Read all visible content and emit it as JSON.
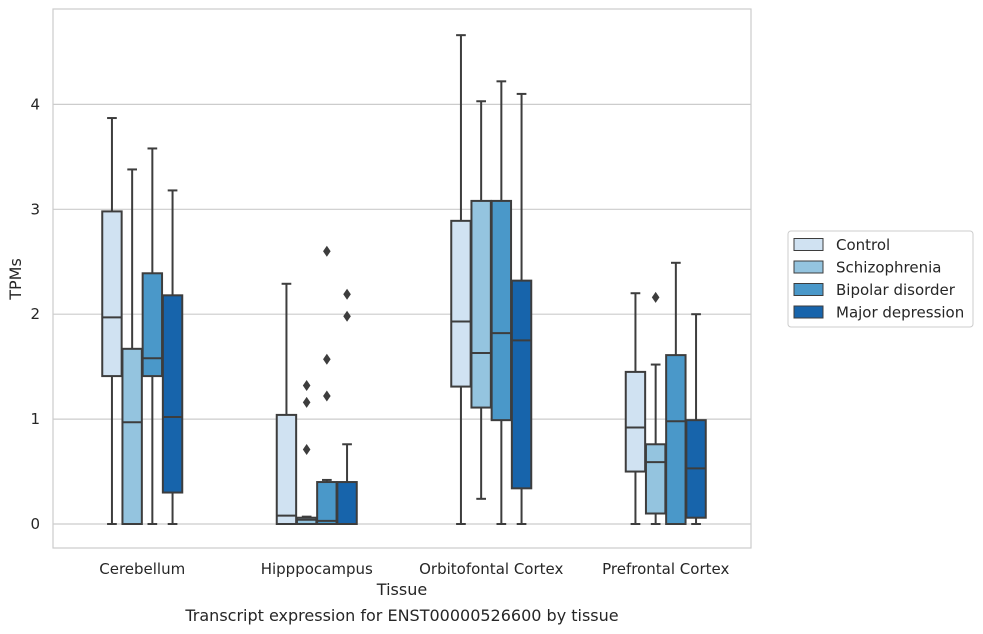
{
  "chart_data": {
    "type": "box",
    "title": "Transcript expression for ENST00000526600 by tissue",
    "xlabel": "Tissue",
    "ylabel": "TPMs",
    "ylim": [
      -0.22,
      4.9
    ],
    "yticks": [
      0,
      1,
      2,
      3,
      4
    ],
    "grid": "horizontal",
    "legend_position": "right",
    "categories": [
      "Cerebellum",
      "Hipppocampus",
      "Orbitofontal Cortex",
      "Prefrontal Cortex"
    ],
    "series": [
      {
        "name": "Control",
        "color": "#d0e2f2",
        "boxes": [
          {
            "whislo": 0,
            "q1": 1.41,
            "med": 1.97,
            "q3": 2.98,
            "whishi": 3.87,
            "fliers": []
          },
          {
            "whislo": 0,
            "q1": 0,
            "med": 0.08,
            "q3": 1.04,
            "whishi": 2.29,
            "fliers": []
          },
          {
            "whislo": 0,
            "q1": 1.31,
            "med": 1.93,
            "q3": 2.89,
            "whishi": 4.66,
            "fliers": []
          },
          {
            "whislo": 0,
            "q1": 0.5,
            "med": 0.92,
            "q3": 1.45,
            "whishi": 2.2,
            "fliers": []
          }
        ]
      },
      {
        "name": "Schizophrenia",
        "color": "#94c4df",
        "boxes": [
          {
            "whislo": 0,
            "q1": 0,
            "med": 0.97,
            "q3": 1.67,
            "whishi": 3.38,
            "fliers": []
          },
          {
            "whislo": 0,
            "q1": 0,
            "med": 0.04,
            "q3": 0.06,
            "whishi": 0.07,
            "fliers": [
              0.71,
              1.16,
              1.32
            ]
          },
          {
            "whislo": 0.24,
            "q1": 1.11,
            "med": 1.63,
            "q3": 3.08,
            "whishi": 4.03,
            "fliers": []
          },
          {
            "whislo": 0,
            "q1": 0.1,
            "med": 0.59,
            "q3": 0.76,
            "whishi": 1.52,
            "fliers": [
              2.16
            ]
          }
        ]
      },
      {
        "name": "Bipolar disorder",
        "color": "#4a98c9",
        "boxes": [
          {
            "whislo": 0,
            "q1": 1.41,
            "med": 1.58,
            "q3": 2.39,
            "whishi": 3.58,
            "fliers": []
          },
          {
            "whislo": 0,
            "q1": 0,
            "med": 0.03,
            "q3": 0.4,
            "whishi": 0.42,
            "fliers": [
              1.22,
              1.57,
              2.6
            ]
          },
          {
            "whislo": 0,
            "q1": 0.99,
            "med": 1.82,
            "q3": 3.08,
            "whishi": 4.22,
            "fliers": []
          },
          {
            "whislo": 0,
            "q1": 0,
            "med": 0.98,
            "q3": 1.61,
            "whishi": 2.49,
            "fliers": []
          }
        ]
      },
      {
        "name": "Major depression",
        "color": "#1764ab",
        "boxes": [
          {
            "whislo": 0,
            "q1": 0.3,
            "med": 1.02,
            "q3": 2.18,
            "whishi": 3.18,
            "fliers": []
          },
          {
            "whislo": 0,
            "q1": 0,
            "med": 0,
            "q3": 0.4,
            "whishi": 0.76,
            "fliers": [
              1.98,
              2.19
            ]
          },
          {
            "whislo": 0,
            "q1": 0.34,
            "med": 1.75,
            "q3": 2.32,
            "whishi": 4.1,
            "fliers": []
          },
          {
            "whislo": 0,
            "q1": 0.06,
            "med": 0.53,
            "q3": 0.99,
            "whishi": 2.0,
            "fliers": []
          }
        ]
      }
    ]
  }
}
